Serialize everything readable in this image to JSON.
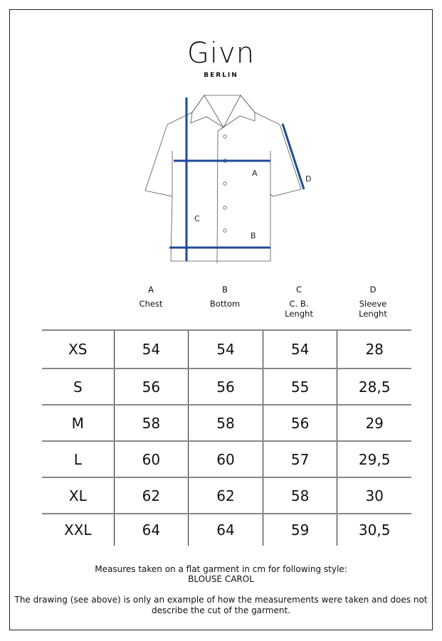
{
  "brand": {
    "name": "Givn",
    "city": "BERLIN"
  },
  "diagram": {
    "labels": [
      "A",
      "B",
      "C",
      "D"
    ],
    "accent": "#1f4a94"
  },
  "table": {
    "headers": [
      {
        "letter": "A",
        "name": "Chest"
      },
      {
        "letter": "B",
        "name": "Bottom"
      },
      {
        "letter": "C",
        "name": "C. B. Lenght"
      },
      {
        "letter": "D",
        "name": "Sleeve Lenght"
      }
    ],
    "rows": [
      [
        "XS",
        "54",
        "54",
        "54",
        "28"
      ],
      [
        "S",
        "56",
        "56",
        "55",
        "28,5"
      ],
      [
        "M",
        "58",
        "58",
        "56",
        "29"
      ],
      [
        "L",
        "60",
        "60",
        "57",
        "29,5"
      ],
      [
        "XL",
        "62",
        "62",
        "58",
        "30"
      ],
      [
        "XXL",
        "64",
        "64",
        "59",
        "30,5"
      ]
    ]
  },
  "notes": {
    "line1": "Measures taken on a flat garment in cm for following style:",
    "style": "BLOUSE CAROL",
    "disclaimer": "The drawing (see above) is only an example of how the measurements were taken and does not describe the cut of the garment."
  }
}
